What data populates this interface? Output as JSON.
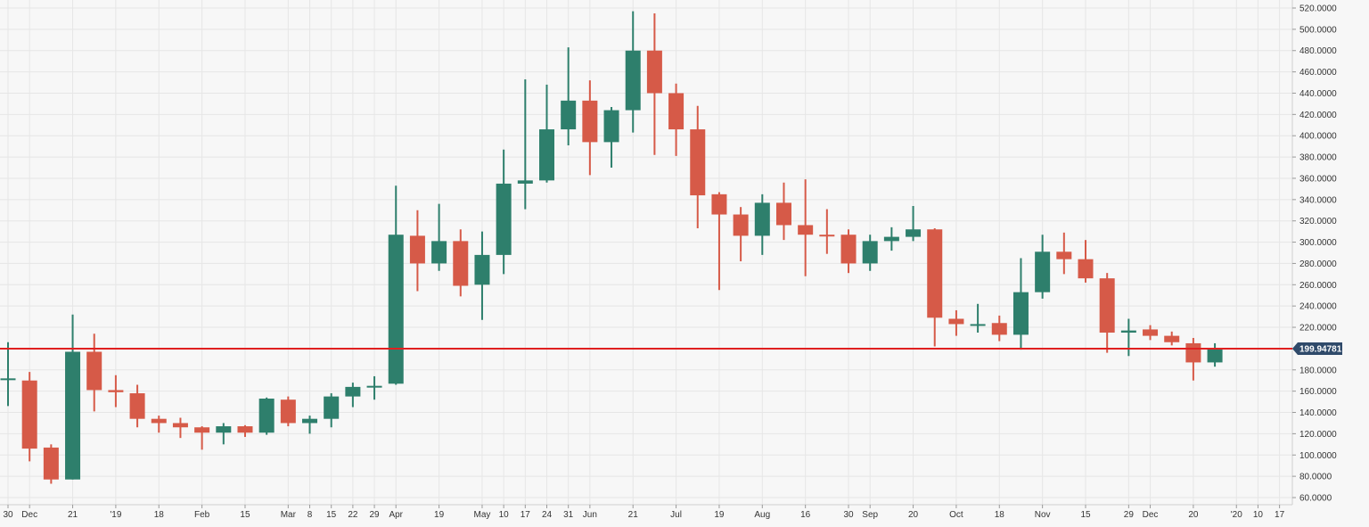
{
  "chart_data": {
    "type": "candlestick",
    "interval": "weekly",
    "colors": {
      "up": "#2e7f6c",
      "down": "#d65a48",
      "level_line": "#e02020",
      "price_tag": "#2f4a6a",
      "grid": "#e6e6e6",
      "background": "#f7f7f7"
    },
    "ylim": [
      60,
      520
    ],
    "y_ticks": [
      "520.0000",
      "500.0000",
      "480.0000",
      "460.0000",
      "440.0000",
      "420.0000",
      "400.0000",
      "380.0000",
      "360.0000",
      "340.0000",
      "320.0000",
      "300.0000",
      "280.0000",
      "260.0000",
      "240.0000",
      "220.0000",
      "200.0000",
      "180.0000",
      "160.0000",
      "140.0000",
      "120.0000",
      "100.0000",
      "80.0000",
      "60.0000"
    ],
    "x_ticks": [
      "30",
      "Dec",
      "21",
      "'19",
      "18",
      "Feb",
      "15",
      "Mar",
      "8",
      "15",
      "22",
      "29",
      "Apr",
      "19",
      "May",
      "10",
      "17",
      "24",
      "31",
      "Jun",
      "21",
      "Jul",
      "19",
      "Aug",
      "16",
      "30",
      "Sep",
      "20",
      "Oct",
      "18",
      "Nov",
      "15",
      "29",
      "Dec",
      "20",
      "'20",
      "10",
      "17"
    ],
    "level_line": {
      "value": 199.94781,
      "label": "199.94781"
    },
    "candles": [
      {
        "o": 172,
        "h": 206,
        "l": 146,
        "c": 172
      },
      {
        "o": 170,
        "h": 178,
        "l": 94,
        "c": 106
      },
      {
        "o": 107,
        "h": 110,
        "l": 73,
        "c": 77
      },
      {
        "o": 77,
        "h": 232,
        "l": 77,
        "c": 197
      },
      {
        "o": 197,
        "h": 214,
        "l": 141,
        "c": 161
      },
      {
        "o": 161,
        "h": 175,
        "l": 145,
        "c": 159
      },
      {
        "o": 158,
        "h": 166,
        "l": 126,
        "c": 134
      },
      {
        "o": 134,
        "h": 137,
        "l": 121,
        "c": 130
      },
      {
        "o": 130,
        "h": 135,
        "l": 116,
        "c": 126
      },
      {
        "o": 126,
        "h": 127,
        "l": 105,
        "c": 121
      },
      {
        "o": 121,
        "h": 130,
        "l": 110,
        "c": 127
      },
      {
        "o": 127,
        "h": 128,
        "l": 117,
        "c": 121
      },
      {
        "o": 121,
        "h": 154,
        "l": 119,
        "c": 153
      },
      {
        "o": 152,
        "h": 155,
        "l": 127,
        "c": 130
      },
      {
        "o": 130,
        "h": 137,
        "l": 120,
        "c": 134
      },
      {
        "o": 134,
        "h": 158,
        "l": 126,
        "c": 155
      },
      {
        "o": 155,
        "h": 168,
        "l": 145,
        "c": 164
      },
      {
        "o": 164,
        "h": 174,
        "l": 152,
        "c": 165
      },
      {
        "o": 167,
        "h": 353,
        "l": 166,
        "c": 307
      },
      {
        "o": 306,
        "h": 330,
        "l": 254,
        "c": 280
      },
      {
        "o": 280,
        "h": 336,
        "l": 273,
        "c": 301
      },
      {
        "o": 301,
        "h": 312,
        "l": 249,
        "c": 259
      },
      {
        "o": 260,
        "h": 310,
        "l": 227,
        "c": 288
      },
      {
        "o": 288,
        "h": 387,
        "l": 270,
        "c": 355
      },
      {
        "o": 355,
        "h": 453,
        "l": 331,
        "c": 358
      },
      {
        "o": 358,
        "h": 448,
        "l": 356,
        "c": 406
      },
      {
        "o": 406,
        "h": 483,
        "l": 391,
        "c": 433
      },
      {
        "o": 433,
        "h": 452,
        "l": 363,
        "c": 394
      },
      {
        "o": 394,
        "h": 427,
        "l": 370,
        "c": 424
      },
      {
        "o": 424,
        "h": 517,
        "l": 403,
        "c": 480
      },
      {
        "o": 480,
        "h": 515,
        "l": 382,
        "c": 440
      },
      {
        "o": 440,
        "h": 449,
        "l": 381,
        "c": 406
      },
      {
        "o": 406,
        "h": 428,
        "l": 313,
        "c": 344
      },
      {
        "o": 345,
        "h": 347,
        "l": 255,
        "c": 326
      },
      {
        "o": 326,
        "h": 333,
        "l": 282,
        "c": 306
      },
      {
        "o": 306,
        "h": 345,
        "l": 288,
        "c": 337
      },
      {
        "o": 337,
        "h": 356,
        "l": 302,
        "c": 316
      },
      {
        "o": 316,
        "h": 359,
        "l": 268,
        "c": 307
      },
      {
        "o": 307,
        "h": 331,
        "l": 289,
        "c": 306
      },
      {
        "o": 307,
        "h": 312,
        "l": 271,
        "c": 280
      },
      {
        "o": 280,
        "h": 307,
        "l": 273,
        "c": 301
      },
      {
        "o": 301,
        "h": 314,
        "l": 292,
        "c": 305
      },
      {
        "o": 305,
        "h": 334,
        "l": 301,
        "c": 312
      },
      {
        "o": 312,
        "h": 313,
        "l": 202,
        "c": 229
      },
      {
        "o": 228,
        "h": 236,
        "l": 212,
        "c": 223
      },
      {
        "o": 223,
        "h": 242,
        "l": 215,
        "c": 223
      },
      {
        "o": 224,
        "h": 231,
        "l": 207,
        "c": 213
      },
      {
        "o": 213,
        "h": 285,
        "l": 199,
        "c": 253
      },
      {
        "o": 253,
        "h": 307,
        "l": 247,
        "c": 291
      },
      {
        "o": 291,
        "h": 309,
        "l": 270,
        "c": 284
      },
      {
        "o": 284,
        "h": 302,
        "l": 262,
        "c": 266
      },
      {
        "o": 266,
        "h": 271,
        "l": 196,
        "c": 215
      },
      {
        "o": 215,
        "h": 228,
        "l": 193,
        "c": 217
      },
      {
        "o": 218,
        "h": 222,
        "l": 208,
        "c": 212
      },
      {
        "o": 212,
        "h": 216,
        "l": 203,
        "c": 206
      },
      {
        "o": 205,
        "h": 210,
        "l": 170,
        "c": 187
      },
      {
        "o": 187,
        "h": 205,
        "l": 183,
        "c": 200
      }
    ]
  }
}
